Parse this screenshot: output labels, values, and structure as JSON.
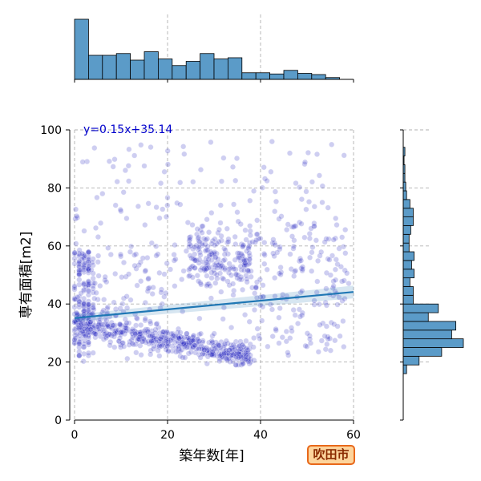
{
  "chart_data": {
    "type": "scatter",
    "xlabel": "築年数[年]",
    "ylabel": "専有面積[m2]",
    "xlim": [
      0,
      60
    ],
    "ylim": [
      0,
      100
    ],
    "xticks": [
      0,
      20,
      40,
      60
    ],
    "yticks": [
      0,
      20,
      40,
      60,
      80,
      100
    ],
    "grid": true,
    "regression": {
      "label": "y=0.15x+35.14",
      "slope": 0.15,
      "intercept": 35.14,
      "color": "#1f77b4"
    },
    "points": {
      "color": "#2222c0",
      "alpha": 0.22
    },
    "marginal_x_hist": {
      "bin_edges": [
        0,
        3,
        6,
        9,
        12,
        15,
        18,
        21,
        24,
        27,
        30,
        33,
        36,
        39,
        42,
        45,
        48,
        51,
        54,
        57,
        60
      ],
      "counts": [
        100,
        40,
        40,
        43,
        32,
        46,
        34,
        23,
        30,
        43,
        34,
        36,
        11,
        11,
        9,
        15,
        10,
        8,
        3,
        0
      ],
      "color": "#5b9bc8"
    },
    "marginal_y_hist": {
      "bin_edges": [
        16,
        19,
        22,
        25,
        28,
        31,
        34,
        37,
        40,
        43,
        46,
        49,
        52,
        55,
        58,
        61,
        64,
        67,
        70,
        73,
        76,
        79,
        82,
        85,
        88,
        91,
        94,
        97,
        100
      ],
      "counts": [
        4,
        19,
        46,
        72,
        58,
        63,
        30,
        42,
        12,
        12,
        8,
        13,
        10,
        13,
        7,
        7,
        9,
        12,
        12,
        8,
        4,
        3,
        2,
        2,
        1,
        2,
        0,
        0
      ],
      "color": "#5b9bc8"
    }
  },
  "badge": {
    "text": "吹田市"
  }
}
